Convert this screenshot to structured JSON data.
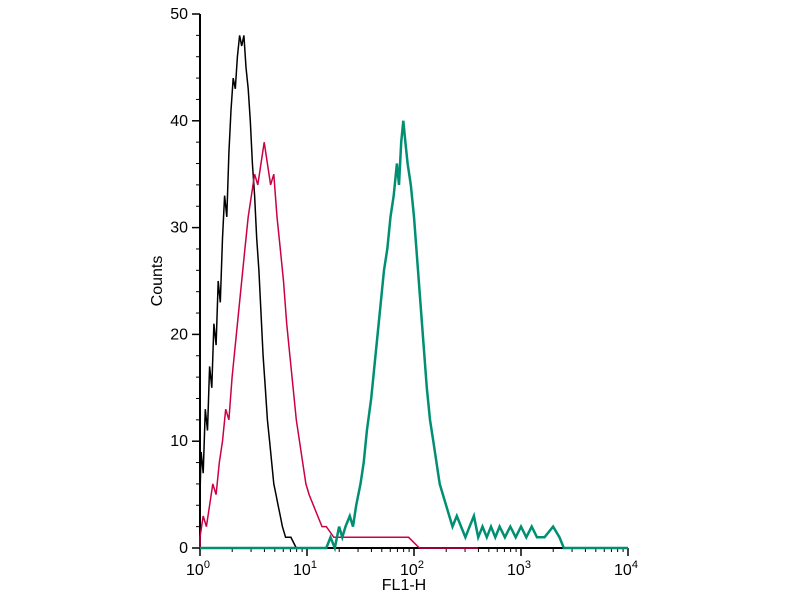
{
  "chart_data": {
    "type": "line",
    "title": "",
    "xlabel": "FL1-H",
    "ylabel": "Counts",
    "x_scale": "log10",
    "xlim_exp": [
      0,
      4
    ],
    "ylim": [
      0,
      50
    ],
    "yticks": [
      "0",
      "10",
      "20",
      "30",
      "40",
      "50"
    ],
    "ytick_values": [
      0,
      10,
      20,
      30,
      40,
      50
    ],
    "y_minor_step": 2,
    "xticks": [
      {
        "base": "10",
        "exp": "0"
      },
      {
        "base": "10",
        "exp": "1"
      },
      {
        "base": "10",
        "exp": "2"
      },
      {
        "base": "10",
        "exp": "3"
      },
      {
        "base": "10",
        "exp": "4"
      }
    ],
    "xtick_exponents": [
      0,
      1,
      2,
      3,
      4
    ],
    "grid": false,
    "legend": "none",
    "series": [
      {
        "name": "black",
        "color": "#000000",
        "width": 1.5,
        "points": [
          [
            0.0,
            0
          ],
          [
            0.0,
            5
          ],
          [
            0.01,
            9
          ],
          [
            0.03,
            7
          ],
          [
            0.05,
            13
          ],
          [
            0.07,
            11
          ],
          [
            0.09,
            17
          ],
          [
            0.11,
            15
          ],
          [
            0.13,
            21
          ],
          [
            0.15,
            19
          ],
          [
            0.17,
            25
          ],
          [
            0.19,
            23
          ],
          [
            0.21,
            29
          ],
          [
            0.23,
            33
          ],
          [
            0.25,
            31
          ],
          [
            0.27,
            37
          ],
          [
            0.29,
            41
          ],
          [
            0.31,
            44
          ],
          [
            0.33,
            43
          ],
          [
            0.35,
            46
          ],
          [
            0.37,
            48
          ],
          [
            0.39,
            47
          ],
          [
            0.41,
            48
          ],
          [
            0.43,
            45
          ],
          [
            0.45,
            43
          ],
          [
            0.47,
            40
          ],
          [
            0.49,
            36
          ],
          [
            0.51,
            33
          ],
          [
            0.53,
            29
          ],
          [
            0.55,
            26
          ],
          [
            0.57,
            22
          ],
          [
            0.59,
            18
          ],
          [
            0.61,
            15
          ],
          [
            0.63,
            12
          ],
          [
            0.65,
            10
          ],
          [
            0.67,
            8
          ],
          [
            0.69,
            6
          ],
          [
            0.71,
            5
          ],
          [
            0.73,
            4
          ],
          [
            0.75,
            3
          ],
          [
            0.77,
            2
          ],
          [
            0.8,
            1
          ],
          [
            0.85,
            1
          ],
          [
            0.9,
            0
          ]
        ]
      },
      {
        "name": "red",
        "color": "#cc0044",
        "width": 1.5,
        "points": [
          [
            0.0,
            0
          ],
          [
            0.0,
            1
          ],
          [
            0.03,
            3
          ],
          [
            0.06,
            2
          ],
          [
            0.09,
            4
          ],
          [
            0.12,
            6
          ],
          [
            0.15,
            5
          ],
          [
            0.18,
            8
          ],
          [
            0.21,
            10
          ],
          [
            0.24,
            13
          ],
          [
            0.27,
            12
          ],
          [
            0.3,
            16
          ],
          [
            0.33,
            19
          ],
          [
            0.36,
            22
          ],
          [
            0.39,
            25
          ],
          [
            0.42,
            28
          ],
          [
            0.45,
            31
          ],
          [
            0.48,
            33
          ],
          [
            0.51,
            35
          ],
          [
            0.54,
            34
          ],
          [
            0.57,
            36
          ],
          [
            0.6,
            38
          ],
          [
            0.63,
            36
          ],
          [
            0.66,
            34
          ],
          [
            0.69,
            35
          ],
          [
            0.72,
            31
          ],
          [
            0.75,
            28
          ],
          [
            0.78,
            25
          ],
          [
            0.81,
            21
          ],
          [
            0.84,
            18
          ],
          [
            0.87,
            15
          ],
          [
            0.9,
            12
          ],
          [
            0.93,
            10
          ],
          [
            0.96,
            8
          ],
          [
            0.99,
            6
          ],
          [
            1.02,
            5
          ],
          [
            1.06,
            4
          ],
          [
            1.1,
            3
          ],
          [
            1.14,
            2
          ],
          [
            1.18,
            2
          ],
          [
            1.25,
            1
          ],
          [
            1.35,
            1
          ],
          [
            1.45,
            1
          ],
          [
            1.55,
            1
          ],
          [
            1.65,
            1
          ],
          [
            1.75,
            1
          ],
          [
            1.85,
            1
          ],
          [
            1.95,
            1
          ],
          [
            2.05,
            0
          ],
          [
            2.6,
            0
          ]
        ]
      },
      {
        "name": "teal",
        "color": "#008f73",
        "width": 2.5,
        "points": [
          [
            0.0,
            0
          ],
          [
            1.18,
            0
          ],
          [
            1.22,
            1
          ],
          [
            1.26,
            0
          ],
          [
            1.3,
            2
          ],
          [
            1.33,
            1
          ],
          [
            1.36,
            2
          ],
          [
            1.4,
            3
          ],
          [
            1.43,
            2
          ],
          [
            1.46,
            4
          ],
          [
            1.5,
            6
          ],
          [
            1.53,
            8
          ],
          [
            1.56,
            11
          ],
          [
            1.6,
            14
          ],
          [
            1.63,
            17
          ],
          [
            1.66,
            20
          ],
          [
            1.69,
            23
          ],
          [
            1.72,
            26
          ],
          [
            1.75,
            28
          ],
          [
            1.78,
            31
          ],
          [
            1.81,
            33
          ],
          [
            1.84,
            36
          ],
          [
            1.86,
            34
          ],
          [
            1.88,
            38
          ],
          [
            1.9,
            40
          ],
          [
            1.92,
            38
          ],
          [
            1.94,
            36
          ],
          [
            1.97,
            34
          ],
          [
            2.0,
            31
          ],
          [
            2.03,
            27
          ],
          [
            2.06,
            23
          ],
          [
            2.09,
            19
          ],
          [
            2.12,
            15
          ],
          [
            2.15,
            12
          ],
          [
            2.18,
            10
          ],
          [
            2.21,
            8
          ],
          [
            2.24,
            6
          ],
          [
            2.27,
            5
          ],
          [
            2.3,
            4
          ],
          [
            2.33,
            3
          ],
          [
            2.36,
            2
          ],
          [
            2.4,
            3
          ],
          [
            2.44,
            2
          ],
          [
            2.48,
            1
          ],
          [
            2.52,
            2
          ],
          [
            2.56,
            3
          ],
          [
            2.6,
            1
          ],
          [
            2.64,
            2
          ],
          [
            2.68,
            1
          ],
          [
            2.72,
            2
          ],
          [
            2.76,
            1
          ],
          [
            2.8,
            2
          ],
          [
            2.85,
            1
          ],
          [
            2.9,
            2
          ],
          [
            2.95,
            1
          ],
          [
            3.0,
            2
          ],
          [
            3.05,
            1
          ],
          [
            3.1,
            2
          ],
          [
            3.15,
            1
          ],
          [
            3.22,
            1
          ],
          [
            3.3,
            2
          ],
          [
            3.36,
            1
          ],
          [
            3.4,
            0
          ],
          [
            4.0,
            0
          ]
        ]
      }
    ]
  }
}
